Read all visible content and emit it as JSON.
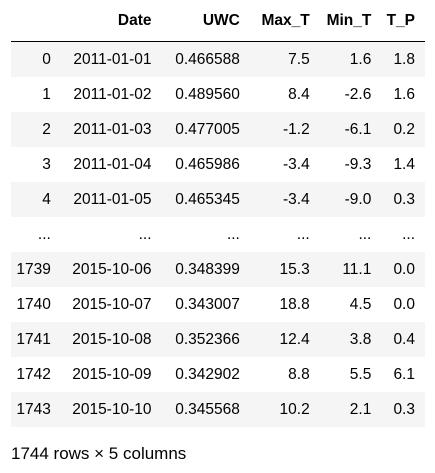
{
  "dataframe": {
    "index_header": "",
    "columns": [
      "Date",
      "UWC",
      "Max_T",
      "Min_T",
      "T_P"
    ],
    "rows": [
      {
        "index": "0",
        "cells": [
          "2011-01-01",
          "0.466588",
          "7.5",
          "1.6",
          "1.8"
        ]
      },
      {
        "index": "1",
        "cells": [
          "2011-01-02",
          "0.489560",
          "8.4",
          "-2.6",
          "1.6"
        ]
      },
      {
        "index": "2",
        "cells": [
          "2011-01-03",
          "0.477005",
          "-1.2",
          "-6.1",
          "0.2"
        ]
      },
      {
        "index": "3",
        "cells": [
          "2011-01-04",
          "0.465986",
          "-3.4",
          "-9.3",
          "1.4"
        ]
      },
      {
        "index": "4",
        "cells": [
          "2011-01-05",
          "0.465345",
          "-3.4",
          "-9.0",
          "0.3"
        ]
      },
      {
        "index": "...",
        "cells": [
          "...",
          "...",
          "...",
          "...",
          "..."
        ]
      },
      {
        "index": "1739",
        "cells": [
          "2015-10-06",
          "0.348399",
          "15.3",
          "11.1",
          "0.0"
        ]
      },
      {
        "index": "1740",
        "cells": [
          "2015-10-07",
          "0.343007",
          "18.8",
          "4.5",
          "0.0"
        ]
      },
      {
        "index": "1741",
        "cells": [
          "2015-10-08",
          "0.352366",
          "12.4",
          "3.8",
          "0.4"
        ]
      },
      {
        "index": "1742",
        "cells": [
          "2015-10-09",
          "0.342902",
          "8.8",
          "5.5",
          "6.1"
        ]
      },
      {
        "index": "1743",
        "cells": [
          "2015-10-10",
          "0.345568",
          "10.2",
          "2.1",
          "0.3"
        ]
      }
    ],
    "footer": "1744 rows × 5 columns"
  }
}
